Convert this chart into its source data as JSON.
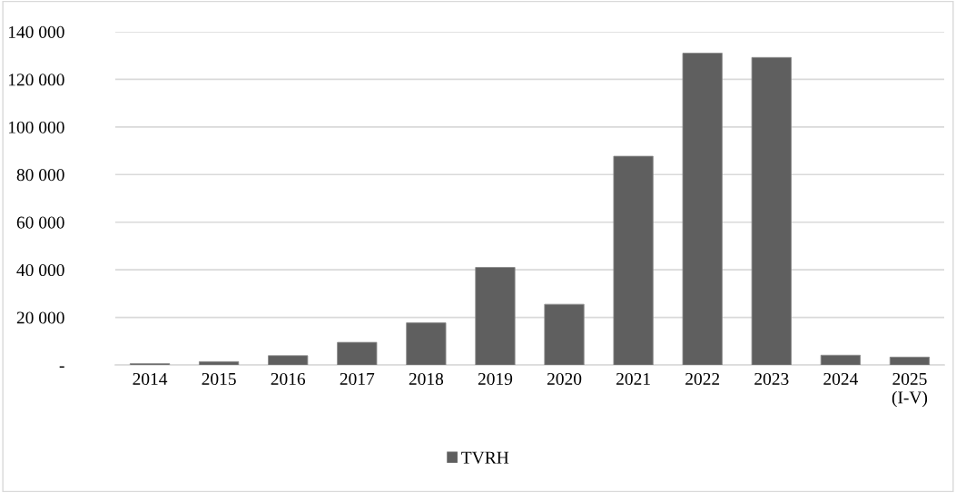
{
  "chart_data": {
    "type": "bar",
    "categories": [
      "2014",
      "2015",
      "2016",
      "2017",
      "2018",
      "2019",
      "2020",
      "2021",
      "2022",
      "2023",
      "2024",
      "2025\n(I-V)"
    ],
    "series": [
      {
        "name": "TVRH",
        "color": "#5f5f5f",
        "values": [
          600,
          1400,
          3900,
          9500,
          17700,
          41000,
          25500,
          87700,
          131000,
          129200,
          4100,
          3300
        ]
      }
    ],
    "ylim": [
      0,
      140000
    ],
    "yticks": [
      {
        "value": 0,
        "label": "-"
      },
      {
        "value": 20000,
        "label": "20 000"
      },
      {
        "value": 40000,
        "label": "40 000"
      },
      {
        "value": 60000,
        "label": "60 000"
      },
      {
        "value": 80000,
        "label": "80 000"
      },
      {
        "value": 100000,
        "label": "100 000"
      },
      {
        "value": 120000,
        "label": "120 000"
      },
      {
        "value": 140000,
        "label": "140 000"
      }
    ],
    "grid": "y",
    "legend": "bottom"
  }
}
